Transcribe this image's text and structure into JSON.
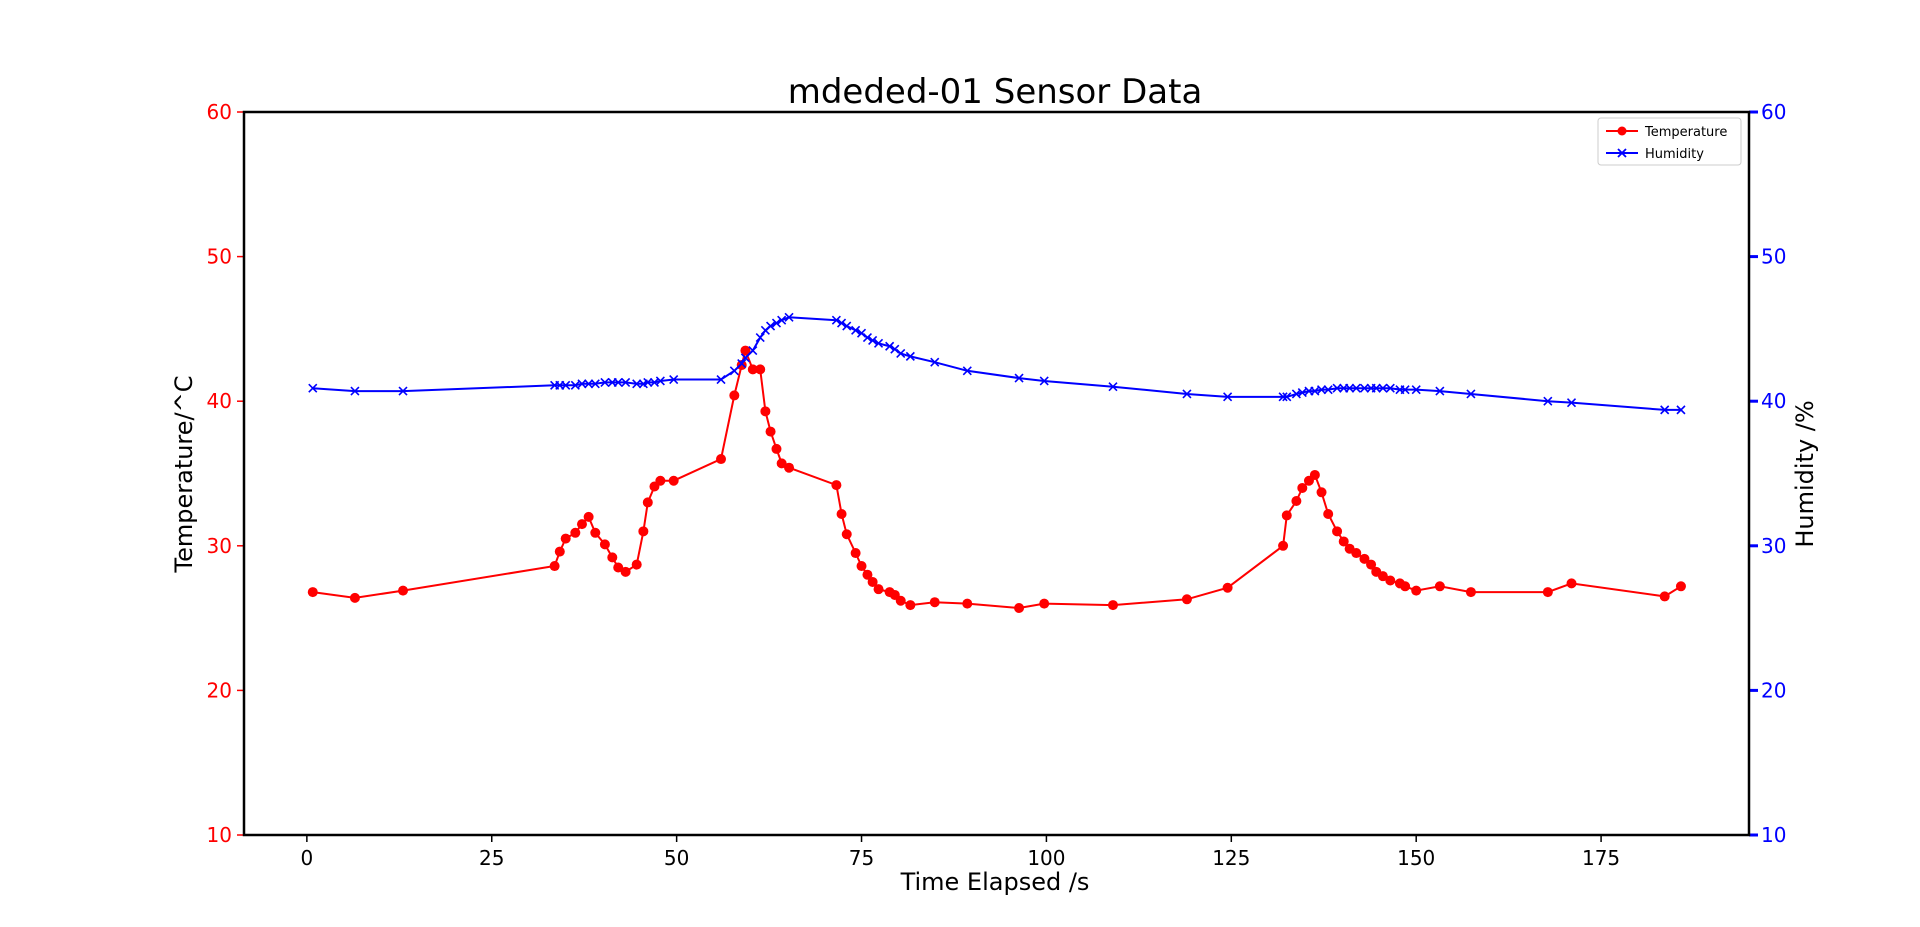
{
  "chart_data": {
    "type": "line",
    "title": "mdeded-01 Sensor Data",
    "xlabel": "Time Elapsed /s",
    "ylabel_left": "Temperature/^C",
    "ylabel_right": "Humidity /%",
    "xlim": [
      -8.5,
      195
    ],
    "ylim_left": [
      10,
      60
    ],
    "ylim_right": [
      10,
      60
    ],
    "xticks": [
      "0",
      "25",
      "50",
      "75",
      "100",
      "125",
      "150",
      "175"
    ],
    "yticks_left": [
      "10",
      "20",
      "30",
      "40",
      "50",
      "60"
    ],
    "yticks_right": [
      "10",
      "20",
      "30",
      "40",
      "50",
      "60"
    ],
    "grid": false,
    "legend_position": "top-right",
    "colors": {
      "left_axis": "#ff0000",
      "right_axis": "#0000ff"
    },
    "series": [
      {
        "name": "Temperature",
        "color": "#ff0000",
        "marker": "circle",
        "axis": "left",
        "x": [
          0.8,
          6.5,
          13,
          33.5,
          34.2,
          35,
          36.3,
          37.2,
          38.1,
          39,
          40.3,
          41.3,
          42.1,
          43.1,
          44.6,
          45.5,
          46.1,
          47,
          47.8,
          49.6,
          56,
          57.8,
          58.8,
          59.3,
          60.3,
          61.3,
          62,
          62.7,
          63.5,
          64.2,
          65.2,
          71.6,
          72.3,
          73,
          74.2,
          75,
          75.8,
          76.5,
          77.3,
          78.8,
          79.5,
          80.3,
          81.6,
          84.9,
          89.3,
          96.3,
          99.7,
          109,
          119,
          124.5,
          132,
          132.5,
          133.8,
          134.6,
          135.5,
          136.3,
          137.2,
          138.1,
          139.3,
          140.2,
          141,
          141.9,
          143,
          143.9,
          144.6,
          145.5,
          146.5,
          147.8,
          148.5,
          150,
          153.2,
          157.4,
          167.8,
          171,
          183.6,
          185.8
        ],
        "y": [
          26.8,
          26.4,
          26.9,
          28.6,
          29.6,
          30.5,
          30.9,
          31.5,
          32,
          30.9,
          30.1,
          29.2,
          28.5,
          28.2,
          28.7,
          31,
          33,
          34.1,
          34.5,
          34.5,
          36,
          40.4,
          42.5,
          43.5,
          42.2,
          42.2,
          39.3,
          37.9,
          36.7,
          35.7,
          35.4,
          34.2,
          32.2,
          30.8,
          29.5,
          28.6,
          28,
          27.5,
          27,
          26.8,
          26.6,
          26.2,
          25.9,
          26.1,
          26,
          25.7,
          26,
          25.9,
          26.3,
          27.1,
          30,
          32.1,
          33.1,
          34,
          34.5,
          34.9,
          33.7,
          32.2,
          31,
          30.3,
          29.8,
          29.5,
          29.1,
          28.7,
          28.2,
          27.9,
          27.6,
          27.4,
          27.2,
          26.9,
          27.2,
          26.8,
          26.8,
          27.4,
          26.5,
          27.2
        ]
      },
      {
        "name": "Humidity",
        "color": "#0000ff",
        "marker": "x",
        "axis": "right",
        "x": [
          0.8,
          6.5,
          13,
          33.5,
          34.2,
          35,
          36.3,
          37.2,
          38.1,
          39,
          40.3,
          41.3,
          42.1,
          43.1,
          44.6,
          45.5,
          46.1,
          47,
          47.8,
          49.6,
          56,
          57.8,
          58.8,
          59.3,
          60.3,
          61.3,
          62,
          62.7,
          63.5,
          64.2,
          65.2,
          71.6,
          72.3,
          73,
          74.2,
          75,
          75.8,
          76.5,
          77.3,
          78.8,
          79.5,
          80.3,
          81.6,
          84.9,
          89.3,
          96.3,
          99.7,
          109,
          119,
          124.5,
          132,
          132.5,
          133.8,
          134.6,
          135.5,
          136.3,
          137.2,
          138.1,
          139.3,
          140.2,
          141,
          141.9,
          143,
          143.9,
          144.6,
          145.5,
          146.5,
          147.8,
          148.5,
          150,
          153.2,
          157.4,
          167.8,
          171,
          183.6,
          185.8
        ],
        "y": [
          40.9,
          40.7,
          40.7,
          41.1,
          41.1,
          41.1,
          41.1,
          41.2,
          41.2,
          41.2,
          41.3,
          41.3,
          41.3,
          41.3,
          41.2,
          41.2,
          41.3,
          41.3,
          41.4,
          41.5,
          41.5,
          42.1,
          42.6,
          43,
          43.5,
          44.4,
          44.9,
          45.2,
          45.4,
          45.6,
          45.8,
          45.6,
          45.4,
          45.2,
          44.9,
          44.7,
          44.4,
          44.2,
          44,
          43.8,
          43.6,
          43.3,
          43.1,
          42.7,
          42.1,
          41.6,
          41.4,
          41,
          40.5,
          40.3,
          40.3,
          40.3,
          40.5,
          40.6,
          40.7,
          40.7,
          40.8,
          40.8,
          40.9,
          40.9,
          40.9,
          40.9,
          40.9,
          40.9,
          40.9,
          40.9,
          40.9,
          40.8,
          40.8,
          40.8,
          40.7,
          40.5,
          40,
          39.9,
          39.4,
          39.4
        ]
      }
    ]
  }
}
